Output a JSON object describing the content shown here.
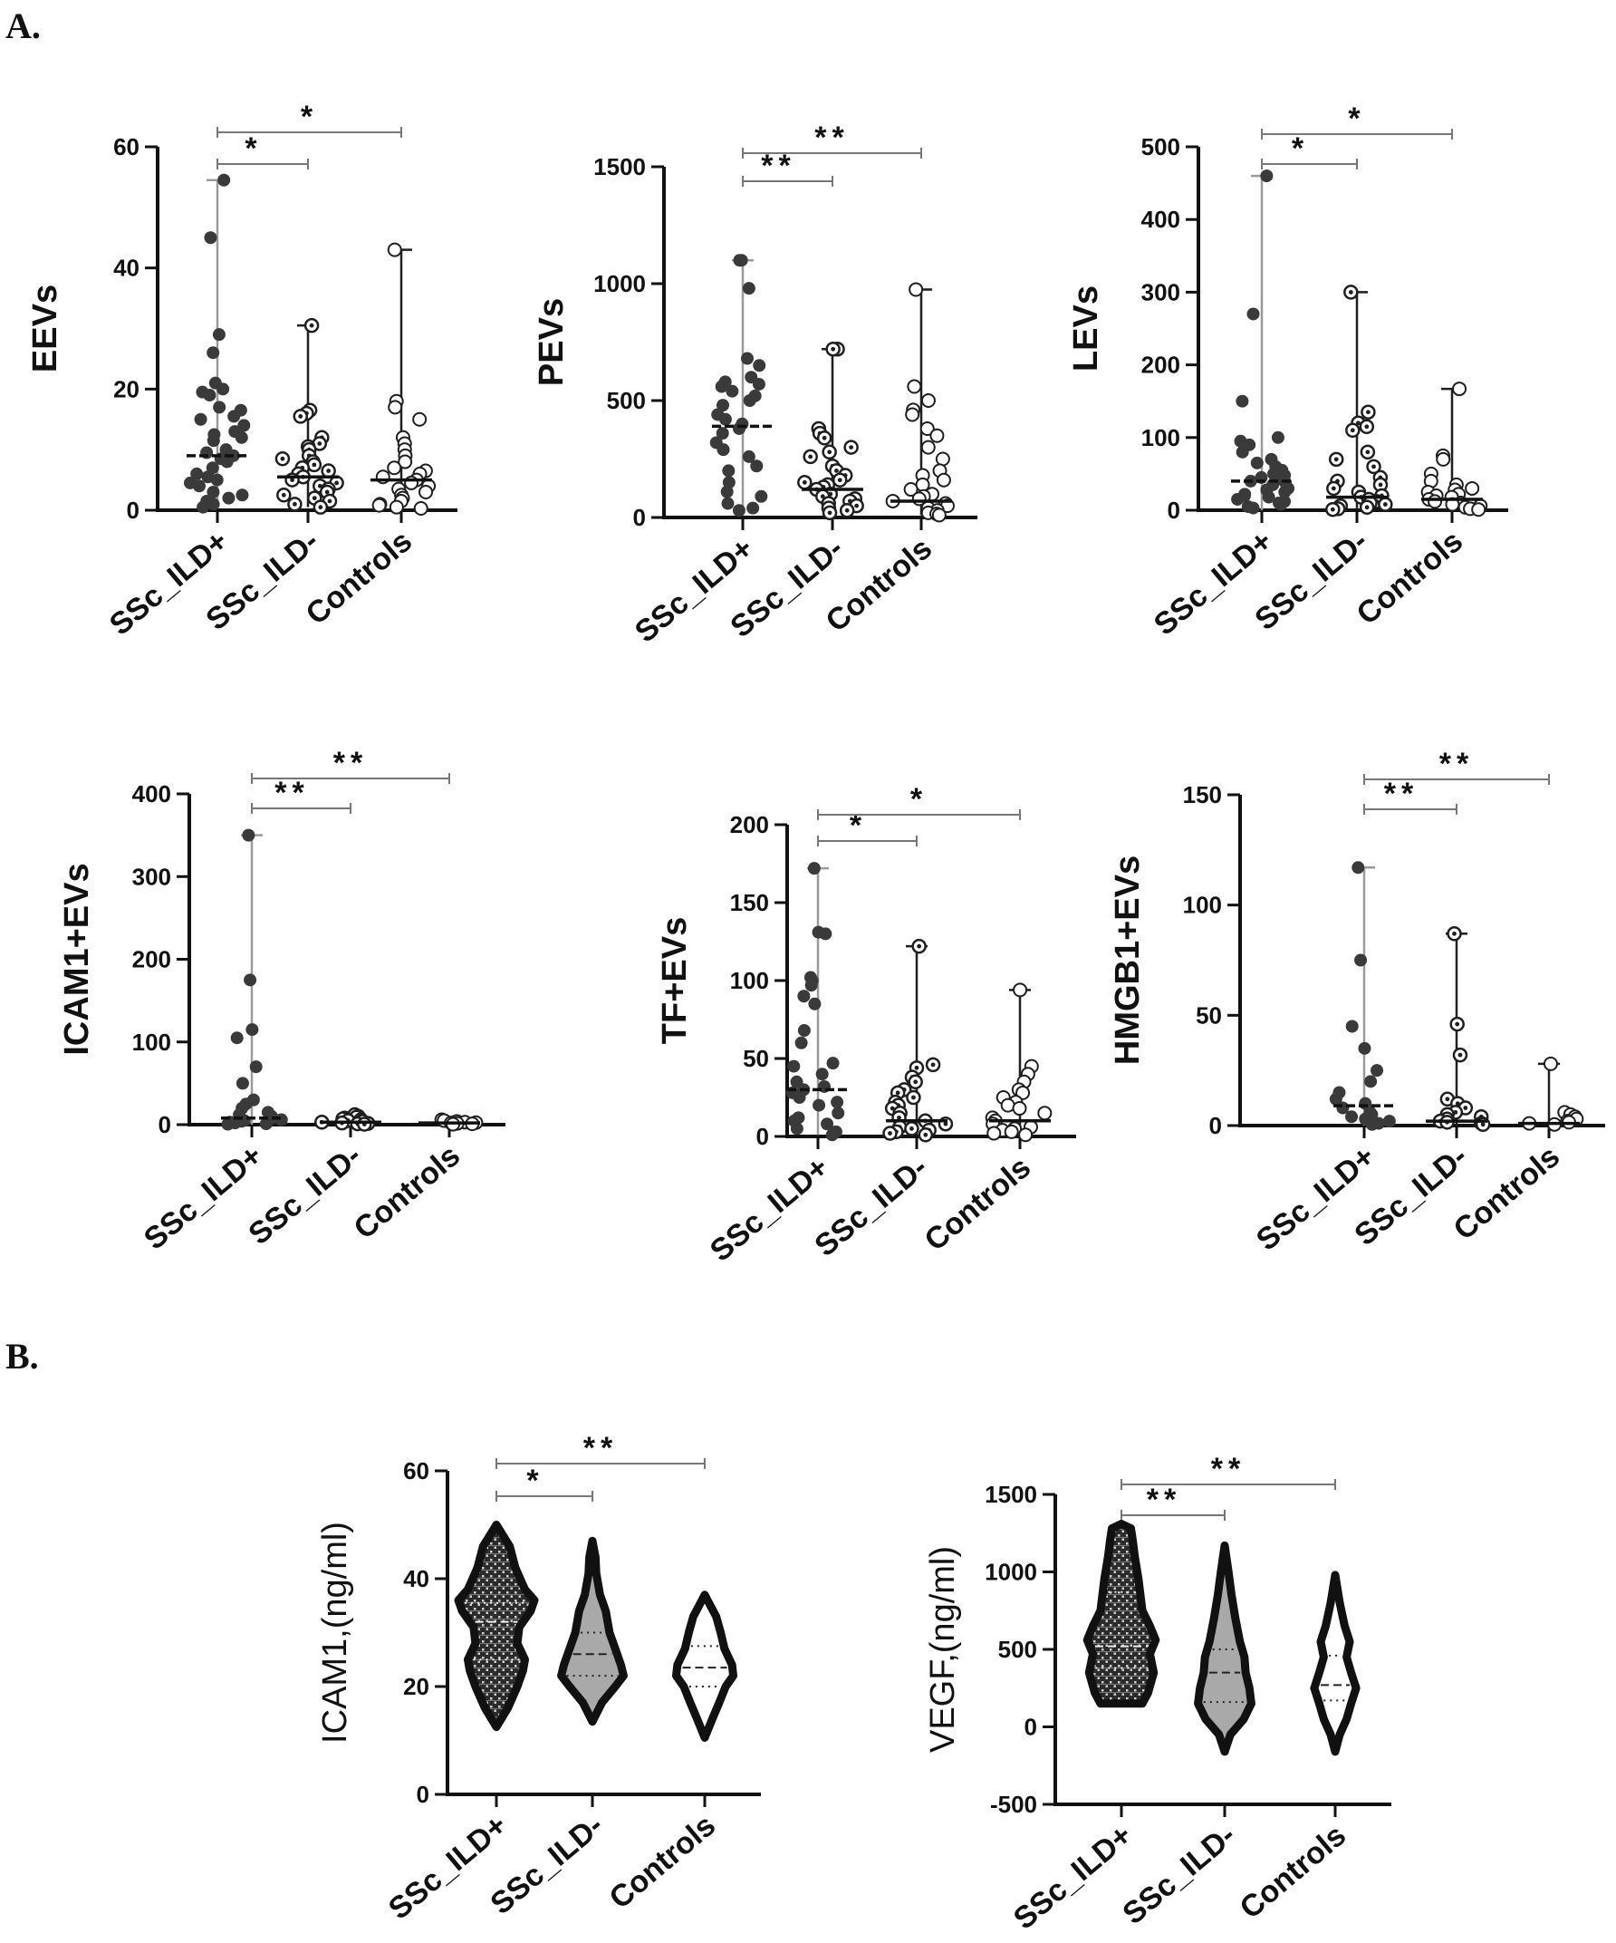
{
  "labels": {
    "panel_a": "A.",
    "panel_b": "B."
  },
  "groups": [
    "SSc_ILD+",
    "SSc_ILD-",
    "Controls"
  ],
  "colors": {
    "ild_pos": "#3a3a3a",
    "ild_neg": "#1f1f1f",
    "controls": "#1f1f1f",
    "bracket": "#777777",
    "axis": "#111111",
    "violin_neg_fill": "#a9a9a9"
  },
  "chart_data": [
    {
      "panel": "A",
      "type": "scatter",
      "ylabel": "EEVs",
      "ylim": [
        0,
        60
      ],
      "yticks": [
        0,
        20,
        40,
        60
      ],
      "series": [
        {
          "group": "SSc_ILD+",
          "median": 9,
          "min": 0.5,
          "max": 54.5,
          "points": [
            54.5,
            45,
            29,
            26,
            21,
            20,
            19.5,
            19,
            17,
            16.5,
            15.5,
            15,
            14,
            13,
            12.5,
            12,
            11.5,
            10,
            9.5,
            9,
            8.5,
            8,
            7,
            6,
            5.5,
            5,
            4.5,
            4,
            3,
            2.5,
            2,
            1.5,
            1,
            0.5
          ]
        },
        {
          "group": "SSc_ILD-",
          "median": 5.5,
          "min": 0.5,
          "max": 30.5,
          "points": [
            30.5,
            16.5,
            16,
            15.5,
            12,
            11,
            10.5,
            10,
            9,
            8.5,
            8,
            7.5,
            7,
            6.5,
            6,
            5.5,
            5,
            4.5,
            4,
            3.5,
            3,
            2.5,
            2,
            1.5,
            1,
            0.5
          ]
        },
        {
          "group": "Controls",
          "median": 5,
          "min": 0.3,
          "max": 43,
          "points": [
            43,
            18,
            17,
            15,
            12,
            11,
            10,
            9,
            8,
            7,
            6.5,
            6,
            5.5,
            5,
            4.5,
            4,
            3.5,
            3,
            2.5,
            2,
            1.5,
            1,
            0.8,
            0.5,
            0.3
          ]
        }
      ],
      "significance": [
        {
          "from": "SSc_ILD+",
          "to": "SSc_ILD-",
          "label": "*"
        },
        {
          "from": "SSc_ILD+",
          "to": "Controls",
          "label": "*"
        }
      ]
    },
    {
      "panel": "A",
      "type": "scatter",
      "ylabel": "PEVs",
      "ylim": [
        0,
        1500
      ],
      "yticks": [
        0,
        500,
        1000,
        1500
      ],
      "series": [
        {
          "group": "SSc_ILD+",
          "median": 390,
          "min": 30,
          "max": 1100,
          "points": [
            1100,
            1100,
            980,
            680,
            650,
            600,
            580,
            570,
            560,
            540,
            520,
            500,
            480,
            440,
            420,
            400,
            380,
            360,
            320,
            290,
            260,
            220,
            200,
            150,
            110,
            90,
            60,
            40,
            30
          ]
        },
        {
          "group": "SSc_ILD-",
          "median": 120,
          "min": 20,
          "max": 720,
          "points": [
            720,
            720,
            380,
            360,
            340,
            300,
            280,
            260,
            220,
            200,
            180,
            160,
            150,
            140,
            130,
            120,
            100,
            90,
            80,
            70,
            60,
            50,
            40,
            30,
            20
          ]
        },
        {
          "group": "Controls",
          "median": 70,
          "min": 10,
          "max": 975,
          "points": [
            975,
            560,
            500,
            460,
            440,
            380,
            350,
            300,
            250,
            200,
            180,
            160,
            140,
            120,
            100,
            90,
            80,
            70,
            60,
            50,
            40,
            30,
            20,
            15,
            10
          ]
        }
      ],
      "significance": [
        {
          "from": "SSc_ILD+",
          "to": "SSc_ILD-",
          "label": "**"
        },
        {
          "from": "SSc_ILD+",
          "to": "Controls",
          "label": "**"
        }
      ]
    },
    {
      "panel": "A",
      "type": "scatter",
      "ylabel": "LEVs",
      "ylim": [
        0,
        500
      ],
      "yticks": [
        0,
        100,
        200,
        300,
        400,
        500
      ],
      "series": [
        {
          "group": "SSc_ILD+",
          "median": 40,
          "min": 0,
          "max": 460,
          "points": [
            460,
            270,
            150,
            100,
            95,
            90,
            80,
            70,
            65,
            60,
            55,
            50,
            48,
            45,
            42,
            40,
            38,
            35,
            30,
            28,
            25,
            22,
            20,
            18,
            15,
            12,
            10,
            8,
            5,
            3
          ]
        },
        {
          "group": "SSc_ILD-",
          "median": 18,
          "min": 1,
          "max": 300,
          "points": [
            300,
            135,
            120,
            115,
            110,
            80,
            70,
            60,
            45,
            40,
            35,
            30,
            25,
            20,
            18,
            15,
            12,
            10,
            8,
            6,
            4,
            2,
            1
          ]
        },
        {
          "group": "Controls",
          "median": 15,
          "min": 1,
          "max": 167,
          "points": [
            167,
            75,
            70,
            50,
            40,
            35,
            30,
            28,
            25,
            22,
            20,
            18,
            15,
            12,
            10,
            8,
            6,
            4,
            2,
            1
          ]
        }
      ],
      "significance": [
        {
          "from": "SSc_ILD+",
          "to": "SSc_ILD-",
          "label": "*"
        },
        {
          "from": "SSc_ILD+",
          "to": "Controls",
          "label": "*"
        }
      ]
    },
    {
      "panel": "A",
      "type": "scatter",
      "ylabel": "ICAM1+EVs",
      "ylim": [
        0,
        400
      ],
      "yticks": [
        0,
        100,
        200,
        300,
        400
      ],
      "series": [
        {
          "group": "SSc_ILD+",
          "median": 8,
          "min": 0,
          "max": 350,
          "points": [
            350,
            175,
            115,
            105,
            70,
            50,
            30,
            25,
            20,
            15,
            12,
            10,
            8,
            6,
            5,
            4,
            3,
            2,
            1,
            0.5
          ]
        },
        {
          "group": "SSc_ILD-",
          "median": 3,
          "min": 0,
          "max": 12,
          "points": [
            12,
            10,
            9,
            8,
            7,
            6,
            5,
            4,
            3,
            2,
            1.5,
            1,
            0.5
          ]
        },
        {
          "group": "Controls",
          "median": 2,
          "min": 0,
          "max": 6,
          "points": [
            6,
            5,
            4,
            3,
            2.5,
            2,
            1.5,
            1,
            0.5
          ]
        }
      ],
      "significance": [
        {
          "from": "SSc_ILD+",
          "to": "SSc_ILD-",
          "label": "**"
        },
        {
          "from": "SSc_ILD+",
          "to": "Controls",
          "label": "**"
        }
      ]
    },
    {
      "panel": "A",
      "type": "scatter",
      "ylabel": "TF+EVs",
      "ylim": [
        0,
        200
      ],
      "yticks": [
        0,
        50,
        100,
        150,
        200
      ],
      "series": [
        {
          "group": "SSc_ILD+",
          "median": 30,
          "min": 1,
          "max": 172,
          "points": [
            172,
            131,
            130,
            102,
            100,
            97,
            90,
            85,
            68,
            60,
            47,
            45,
            40,
            35,
            32,
            30,
            28,
            25,
            22,
            20,
            15,
            12,
            10,
            8,
            5,
            3,
            1
          ]
        },
        {
          "group": "SSc_ILD-",
          "median": 10,
          "min": 1,
          "max": 122,
          "points": [
            122,
            46,
            44,
            38,
            35,
            30,
            28,
            25,
            22,
            20,
            18,
            15,
            12,
            10,
            8,
            6,
            5,
            4,
            3,
            2,
            1
          ]
        },
        {
          "group": "Controls",
          "median": 10,
          "min": 1,
          "max": 94,
          "points": [
            94,
            45,
            40,
            35,
            30,
            28,
            25,
            22,
            20,
            18,
            15,
            12,
            10,
            8,
            6,
            5,
            4,
            3,
            2,
            1
          ]
        }
      ],
      "significance": [
        {
          "from": "SSc_ILD+",
          "to": "SSc_ILD-",
          "label": "*"
        },
        {
          "from": "SSc_ILD+",
          "to": "Controls",
          "label": "*"
        }
      ]
    },
    {
      "panel": "A",
      "type": "scatter",
      "ylabel": "HMGB1+EVs",
      "ylim": [
        0,
        150
      ],
      "yticks": [
        0,
        50,
        100,
        150
      ],
      "series": [
        {
          "group": "SSc_ILD+",
          "median": 9,
          "min": 0,
          "max": 117,
          "points": [
            117,
            75,
            45,
            35,
            25,
            20,
            15,
            12,
            10,
            8,
            6,
            5,
            4,
            3,
            2,
            1,
            0.5
          ]
        },
        {
          "group": "SSc_ILD-",
          "median": 2,
          "min": 0,
          "max": 87,
          "points": [
            87,
            46,
            32,
            12,
            10,
            8,
            6,
            5,
            4,
            3,
            2,
            1.5,
            1,
            0.5
          ]
        },
        {
          "group": "Controls",
          "median": 1,
          "min": 0,
          "max": 28,
          "points": [
            28,
            6,
            5,
            4,
            3,
            2,
            1.5,
            1,
            0.5
          ]
        }
      ],
      "significance": [
        {
          "from": "SSc_ILD+",
          "to": "SSc_ILD-",
          "label": "**"
        },
        {
          "from": "SSc_ILD+",
          "to": "Controls",
          "label": "**"
        }
      ]
    },
    {
      "panel": "B",
      "type": "violin",
      "ylabel": "ICAM1,(ng/ml)",
      "ylim": [
        0,
        60
      ],
      "yticks": [
        0,
        20,
        40,
        60
      ],
      "series": [
        {
          "group": "SSc_ILD+",
          "min": 12.5,
          "max": 50,
          "median": 32,
          "q1": 25,
          "q3": 35.5,
          "profile": [
            [
              12.5,
              0
            ],
            [
              16,
              0.3
            ],
            [
              20,
              0.55
            ],
            [
              23,
              0.7
            ],
            [
              25,
              0.75
            ],
            [
              28,
              0.55
            ],
            [
              31,
              0.6
            ],
            [
              34,
              0.9
            ],
            [
              36,
              1
            ],
            [
              38,
              0.75
            ],
            [
              42,
              0.5
            ],
            [
              46,
              0.35
            ],
            [
              50,
              0
            ]
          ]
        },
        {
          "group": "SSc_ILD-",
          "min": 13.5,
          "max": 47,
          "median": 26,
          "q1": 22,
          "q3": 30,
          "profile": [
            [
              13.5,
              0
            ],
            [
              17,
              0.25
            ],
            [
              20,
              0.6
            ],
            [
              22,
              0.82
            ],
            [
              24,
              0.75
            ],
            [
              27,
              0.6
            ],
            [
              30,
              0.45
            ],
            [
              34,
              0.35
            ],
            [
              37,
              0.2
            ],
            [
              41,
              0.1
            ],
            [
              44,
              0.08
            ],
            [
              47,
              0
            ]
          ]
        },
        {
          "group": "Controls",
          "min": 10.5,
          "max": 37,
          "median": 23.5,
          "q1": 20,
          "q3": 27.5,
          "profile": [
            [
              10.5,
              0
            ],
            [
              14,
              0.2
            ],
            [
              17,
              0.38
            ],
            [
              20,
              0.55
            ],
            [
              22,
              0.75
            ],
            [
              24,
              0.72
            ],
            [
              27,
              0.52
            ],
            [
              30,
              0.42
            ],
            [
              33,
              0.3
            ],
            [
              35,
              0.15
            ],
            [
              37,
              0
            ]
          ]
        }
      ],
      "significance": [
        {
          "from": "SSc_ILD+",
          "to": "SSc_ILD-",
          "label": "*"
        },
        {
          "from": "SSc_ILD+",
          "to": "Controls",
          "label": "**"
        }
      ]
    },
    {
      "panel": "B",
      "type": "violin",
      "ylabel": "VEGF,(ng/ml)",
      "ylim": [
        -500,
        1500
      ],
      "yticks": [
        -500,
        0,
        500,
        1000,
        1500
      ],
      "series": [
        {
          "group": "SSc_ILD+",
          "min": 150,
          "max": 1310,
          "median": 520,
          "q1": 380,
          "q3": 870,
          "profile": [
            [
              150,
              0.55
            ],
            [
              220,
              0.7
            ],
            [
              350,
              0.85
            ],
            [
              470,
              0.75
            ],
            [
              560,
              0.9
            ],
            [
              650,
              0.75
            ],
            [
              750,
              0.55
            ],
            [
              850,
              0.5
            ],
            [
              950,
              0.45
            ],
            [
              1100,
              0.35
            ],
            [
              1200,
              0.3
            ],
            [
              1280,
              0.25
            ],
            [
              1310,
              0
            ]
          ]
        },
        {
          "group": "SSc_ILD-",
          "min": -160,
          "max": 1170,
          "median": 350,
          "q1": 160,
          "q3": 500,
          "profile": [
            [
              -160,
              0
            ],
            [
              -50,
              0.15
            ],
            [
              50,
              0.5
            ],
            [
              150,
              0.7
            ],
            [
              250,
              0.65
            ],
            [
              350,
              0.55
            ],
            [
              450,
              0.52
            ],
            [
              550,
              0.4
            ],
            [
              700,
              0.28
            ],
            [
              850,
              0.18
            ],
            [
              1000,
              0.1
            ],
            [
              1170,
              0
            ]
          ]
        },
        {
          "group": "Controls",
          "min": -160,
          "max": 980,
          "median": 270,
          "q1": 170,
          "q3": 460,
          "profile": [
            [
              -160,
              0
            ],
            [
              -50,
              0.12
            ],
            [
              50,
              0.3
            ],
            [
              150,
              0.42
            ],
            [
              250,
              0.55
            ],
            [
              350,
              0.42
            ],
            [
              450,
              0.3
            ],
            [
              550,
              0.38
            ],
            [
              650,
              0.25
            ],
            [
              800,
              0.12
            ],
            [
              980,
              0
            ]
          ]
        }
      ],
      "significance": [
        {
          "from": "SSc_ILD+",
          "to": "SSc_ILD-",
          "label": "**"
        },
        {
          "from": "SSc_ILD+",
          "to": "Controls",
          "label": "**"
        }
      ]
    }
  ]
}
